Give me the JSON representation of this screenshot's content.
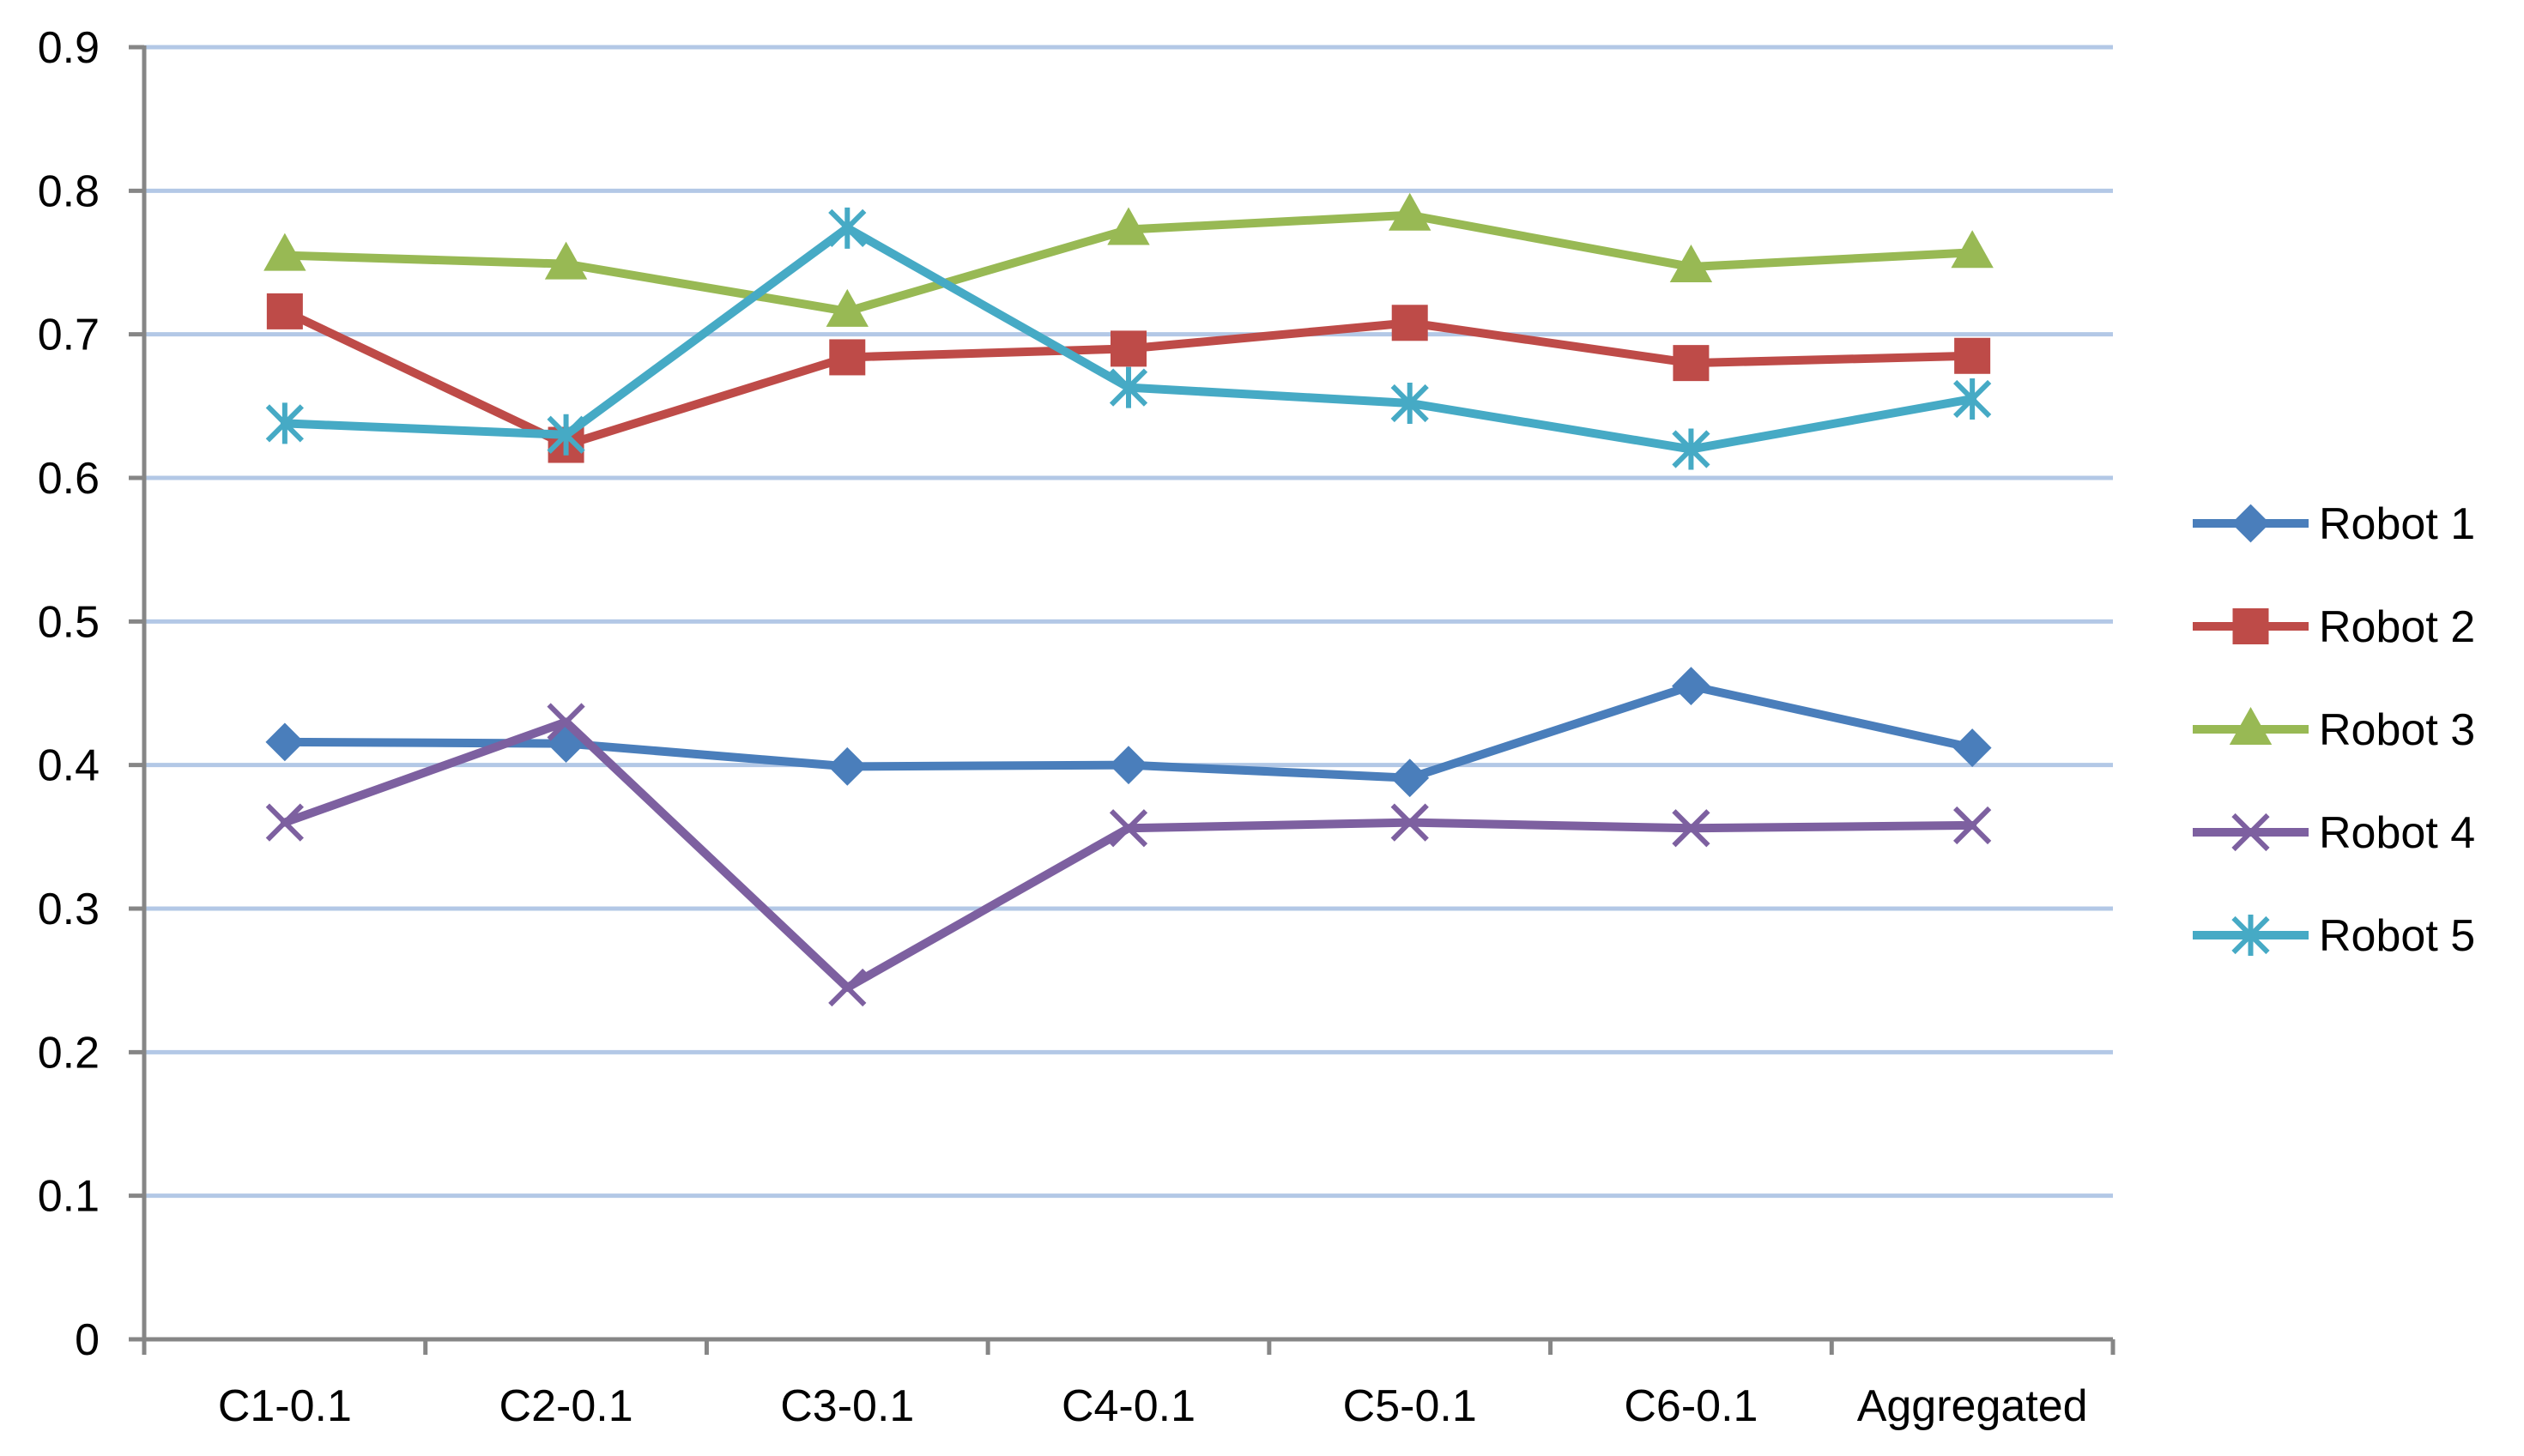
{
  "chart_data": {
    "type": "line",
    "title": "",
    "xlabel": "",
    "ylabel": "",
    "categories": [
      "C1-0.1",
      "C2-0.1",
      "C3-0.1",
      "C4-0.1",
      "C5-0.1",
      "C6-0.1",
      "Aggregated"
    ],
    "ylim": [
      0,
      0.9
    ],
    "yticks": [
      "0",
      "0.1",
      "0.2",
      "0.3",
      "0.4",
      "0.5",
      "0.6",
      "0.7",
      "0.8",
      "0.9"
    ],
    "grid": true,
    "legend_position": "right",
    "series": [
      {
        "name": "Robot 1",
        "color": "#4a7ebb",
        "marker": "diamond",
        "values": [
          0.416,
          0.415,
          0.399,
          0.4,
          0.391,
          0.455,
          0.412
        ]
      },
      {
        "name": "Robot 2",
        "color": "#be4b48",
        "marker": "square",
        "values": [
          0.716,
          0.623,
          0.684,
          0.69,
          0.708,
          0.68,
          0.685
        ]
      },
      {
        "name": "Robot 3",
        "color": "#98b954",
        "marker": "triangle",
        "values": [
          0.755,
          0.749,
          0.716,
          0.773,
          0.783,
          0.747,
          0.757
        ]
      },
      {
        "name": "Robot 4",
        "color": "#7d60a0",
        "marker": "x",
        "values": [
          0.36,
          0.43,
          0.245,
          0.356,
          0.36,
          0.356,
          0.358
        ]
      },
      {
        "name": "Robot 5",
        "color": "#46aac5",
        "marker": "asterisk",
        "values": [
          0.638,
          0.63,
          0.774,
          0.663,
          0.652,
          0.62,
          0.655
        ]
      }
    ]
  }
}
